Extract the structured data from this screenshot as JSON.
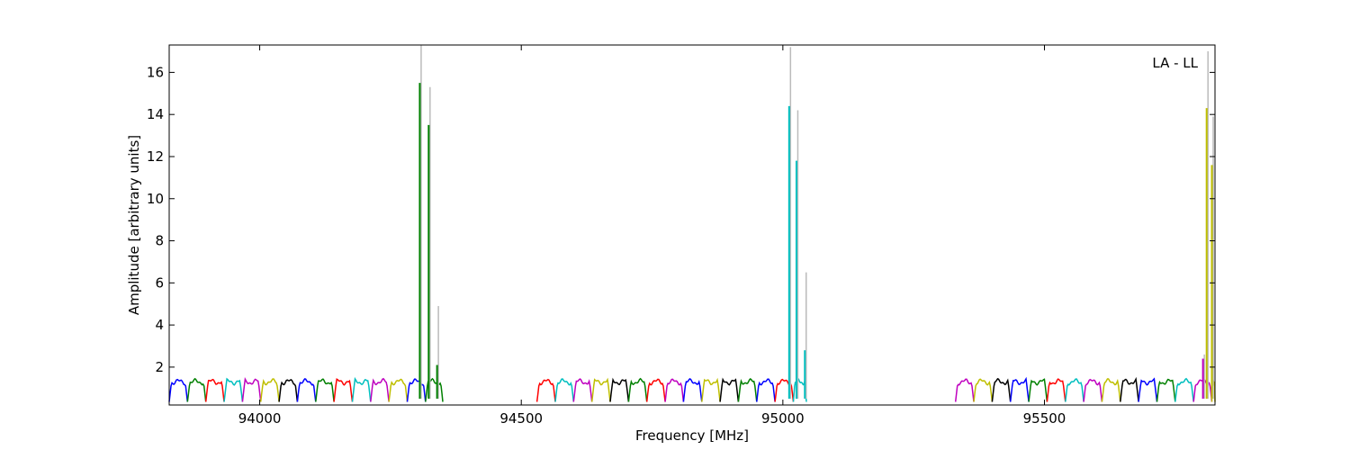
{
  "chart_data": {
    "type": "line",
    "title": "",
    "annotation": "LA - LL",
    "xlabel": "Frequency [MHz]",
    "ylabel": "Amplitude [arbitrary units]",
    "xlim": [
      93827,
      95826
    ],
    "ylim": [
      0.2,
      17.3
    ],
    "xticks": [
      94000,
      94500,
      95000,
      95500
    ],
    "yticks": [
      2,
      4,
      6,
      8,
      10,
      12,
      14,
      16
    ],
    "grid": false,
    "legend": "none",
    "windows": [
      {
        "start": 93827,
        "end": 94350,
        "unit": 35.0
      },
      {
        "start": 94530,
        "end": 95045,
        "unit": 35.0
      },
      {
        "start": 95330,
        "end": 95826,
        "unit": 35.0
      }
    ],
    "series_palette": [
      "#0000ff",
      "#008000",
      "#ff0000",
      "#00bfbf",
      "#bf00bf",
      "#bfbf00",
      "#000000"
    ],
    "channel_colors": {
      "window1": [
        "#0000ff",
        "#008000",
        "#ff0000",
        "#00bfbf",
        "#bf00bf",
        "#bfbf00",
        "#000000",
        "#0000ff",
        "#008000",
        "#ff0000",
        "#00bfbf",
        "#bf00bf",
        "#bfbf00",
        "#0000ff",
        "#008000"
      ],
      "window2": [
        "#ff0000",
        "#00bfbf",
        "#bf00bf",
        "#bfbf00",
        "#000000",
        "#008000",
        "#ff0000",
        "#bf00bf",
        "#0000ff",
        "#bfbf00",
        "#000000",
        "#008000",
        "#0000ff",
        "#ff0000",
        "#00bfbf"
      ],
      "window3": [
        "#bf00bf",
        "#bfbf00",
        "#000000",
        "#0000ff",
        "#008000",
        "#ff0000",
        "#00bfbf",
        "#bf00bf",
        "#bfbf00",
        "#000000",
        "#0000ff",
        "#008000",
        "#00bfbf",
        "#bf00bf",
        "#bfbf00"
      ]
    },
    "peaks": [
      {
        "x": 94306,
        "y": 15.5,
        "raw": 17.3,
        "color": "#008000"
      },
      {
        "x": 94323,
        "y": 13.5,
        "raw": 15.3,
        "color": "#008000"
      },
      {
        "x": 94339,
        "y": 2.1,
        "raw": 4.9,
        "color": "#008000"
      },
      {
        "x": 95012,
        "y": 14.4,
        "raw": 17.2,
        "color": "#00bfbf"
      },
      {
        "x": 95026,
        "y": 11.8,
        "raw": 14.2,
        "color": "#00bfbf"
      },
      {
        "x": 95042,
        "y": 2.8,
        "raw": 6.5,
        "color": "#00bfbf"
      },
      {
        "x": 95803,
        "y": 2.4,
        "raw": 2.6,
        "color": "#bf00bf"
      },
      {
        "x": 95810,
        "y": 14.3,
        "raw": 17.0,
        "color": "#bfbf00"
      },
      {
        "x": 95820,
        "y": 11.6,
        "raw": 13.9,
        "color": "#bfbf00"
      }
    ],
    "raw_peak_color": "#bbbbbb",
    "baseline_level": 1.3
  }
}
